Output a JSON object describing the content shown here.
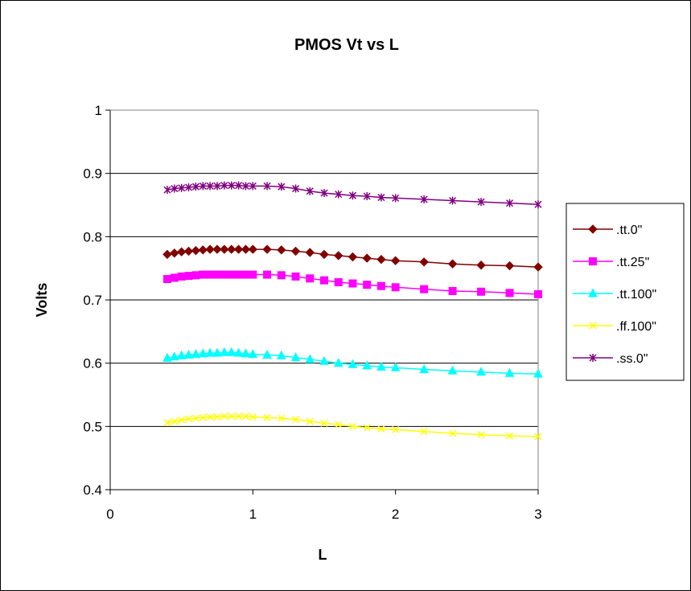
{
  "chart_data": {
    "type": "line",
    "title": "PMOS Vt vs L",
    "xlabel": "L",
    "ylabel": "Volts",
    "xlim": [
      0,
      3
    ],
    "ylim": [
      0.4,
      1
    ],
    "xticks": [
      "0",
      "1",
      "2",
      "3"
    ],
    "yticks": [
      "0.4",
      "0.5",
      "0.6",
      "0.7",
      "0.8",
      "0.9",
      "1"
    ],
    "grid": "horizontal",
    "legend_position": "right",
    "x": [
      0.4,
      0.45,
      0.5,
      0.55,
      0.6,
      0.65,
      0.7,
      0.75,
      0.8,
      0.85,
      0.9,
      0.95,
      1.0,
      1.1,
      1.2,
      1.3,
      1.4,
      1.5,
      1.6,
      1.7,
      1.8,
      1.9,
      2.0,
      2.2,
      2.4,
      2.6,
      2.8,
      3.0
    ],
    "series": [
      {
        "name": ".tt.0\"",
        "color": "#800000",
        "marker": "diamond",
        "values": [
          0.772,
          0.774,
          0.776,
          0.777,
          0.778,
          0.779,
          0.78,
          0.78,
          0.78,
          0.78,
          0.78,
          0.78,
          0.78,
          0.78,
          0.779,
          0.777,
          0.775,
          0.772,
          0.77,
          0.768,
          0.766,
          0.764,
          0.762,
          0.76,
          0.757,
          0.755,
          0.754,
          0.752
        ]
      },
      {
        "name": ".tt.25\"",
        "color": "#ff00ff",
        "marker": "square",
        "values": [
          0.733,
          0.735,
          0.737,
          0.738,
          0.739,
          0.74,
          0.74,
          0.74,
          0.74,
          0.74,
          0.74,
          0.74,
          0.74,
          0.74,
          0.739,
          0.737,
          0.734,
          0.731,
          0.728,
          0.726,
          0.724,
          0.722,
          0.72,
          0.717,
          0.714,
          0.713,
          0.711,
          0.709
        ]
      },
      {
        "name": ".tt.100\"",
        "color": "#00ffff",
        "marker": "triangle",
        "values": [
          0.608,
          0.61,
          0.612,
          0.613,
          0.614,
          0.615,
          0.616,
          0.616,
          0.617,
          0.617,
          0.616,
          0.615,
          0.614,
          0.613,
          0.612,
          0.609,
          0.606,
          0.603,
          0.6,
          0.598,
          0.596,
          0.594,
          0.593,
          0.59,
          0.588,
          0.586,
          0.584,
          0.583
        ]
      },
      {
        "name": ".ff.100\"",
        "color": "#ffff00",
        "marker": "x",
        "values": [
          0.506,
          0.508,
          0.51,
          0.512,
          0.513,
          0.514,
          0.515,
          0.515,
          0.516,
          0.516,
          0.516,
          0.516,
          0.515,
          0.514,
          0.513,
          0.511,
          0.508,
          0.505,
          0.503,
          0.5,
          0.498,
          0.496,
          0.495,
          0.492,
          0.489,
          0.487,
          0.485,
          0.484
        ]
      },
      {
        "name": ".ss.0\"",
        "color": "#800080",
        "marker": "star",
        "values": [
          0.874,
          0.876,
          0.877,
          0.878,
          0.879,
          0.88,
          0.88,
          0.88,
          0.881,
          0.881,
          0.881,
          0.88,
          0.88,
          0.88,
          0.879,
          0.876,
          0.872,
          0.869,
          0.867,
          0.865,
          0.864,
          0.862,
          0.861,
          0.859,
          0.857,
          0.855,
          0.853,
          0.851
        ]
      }
    ]
  }
}
